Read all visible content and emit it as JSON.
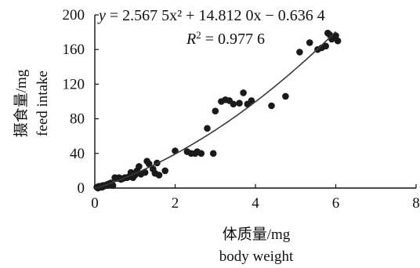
{
  "chart_data": {
    "type": "scatter",
    "title": "",
    "xlabel": "体质量/mg",
    "xlabel_en": "body weight",
    "ylabel": "摄食量/mg",
    "ylabel_en": "feed intake",
    "xlim": [
      0,
      8
    ],
    "ylim": [
      0,
      200
    ],
    "xticks": [
      "0",
      "2",
      "4",
      "6",
      "8"
    ],
    "yticks": [
      "0",
      "40",
      "80",
      "120",
      "160",
      "200"
    ],
    "grid": false,
    "equation": {
      "y": "y",
      "rhs": " = 2.567 5x² + 14.812 0x − 0.636 4",
      "r2_label": "R",
      "r2_sup": "2",
      "r2_value": " = 0.977 6"
    },
    "fit": {
      "a": 2.5675,
      "b": 14.812,
      "c": -0.6364,
      "x_range": [
        0,
        6
      ]
    },
    "colors": {
      "points": "#1a1a1a",
      "curve": "#3a3a3a",
      "axis": "#111111"
    },
    "points": [
      [
        0.05,
        1
      ],
      [
        0.08,
        0
      ],
      [
        0.1,
        2
      ],
      [
        0.12,
        1
      ],
      [
        0.15,
        2
      ],
      [
        0.18,
        1
      ],
      [
        0.2,
        3
      ],
      [
        0.22,
        2
      ],
      [
        0.25,
        3
      ],
      [
        0.3,
        4
      ],
      [
        0.32,
        3
      ],
      [
        0.35,
        5
      ],
      [
        0.38,
        4
      ],
      [
        0.4,
        6
      ],
      [
        0.42,
        5
      ],
      [
        0.45,
        3
      ],
      [
        0.5,
        12
      ],
      [
        0.55,
        11
      ],
      [
        0.6,
        12
      ],
      [
        0.65,
        10
      ],
      [
        0.7,
        11
      ],
      [
        0.75,
        12
      ],
      [
        0.8,
        12
      ],
      [
        0.85,
        13
      ],
      [
        0.9,
        18
      ],
      [
        0.95,
        12
      ],
      [
        1.0,
        15
      ],
      [
        1.05,
        20
      ],
      [
        1.1,
        25
      ],
      [
        1.15,
        16
      ],
      [
        1.25,
        18
      ],
      [
        1.3,
        31
      ],
      [
        1.35,
        28
      ],
      [
        1.45,
        22
      ],
      [
        1.5,
        17
      ],
      [
        1.55,
        29
      ],
      [
        1.6,
        15
      ],
      [
        1.75,
        20
      ],
      [
        2.0,
        43
      ],
      [
        2.3,
        42
      ],
      [
        2.4,
        40
      ],
      [
        2.5,
        40
      ],
      [
        2.55,
        42
      ],
      [
        2.65,
        40
      ],
      [
        2.8,
        69
      ],
      [
        2.95,
        40
      ],
      [
        3.0,
        89
      ],
      [
        3.15,
        100
      ],
      [
        3.25,
        102
      ],
      [
        3.35,
        101
      ],
      [
        3.45,
        97
      ],
      [
        3.6,
        98
      ],
      [
        3.7,
        110
      ],
      [
        3.8,
        97
      ],
      [
        3.9,
        101
      ],
      [
        4.4,
        95
      ],
      [
        4.75,
        106
      ],
      [
        5.1,
        157
      ],
      [
        5.35,
        168
      ],
      [
        5.55,
        160
      ],
      [
        5.65,
        162
      ],
      [
        5.75,
        164
      ],
      [
        5.8,
        179
      ],
      [
        5.85,
        177
      ],
      [
        5.9,
        172
      ],
      [
        6.0,
        176
      ],
      [
        6.05,
        170
      ]
    ]
  }
}
